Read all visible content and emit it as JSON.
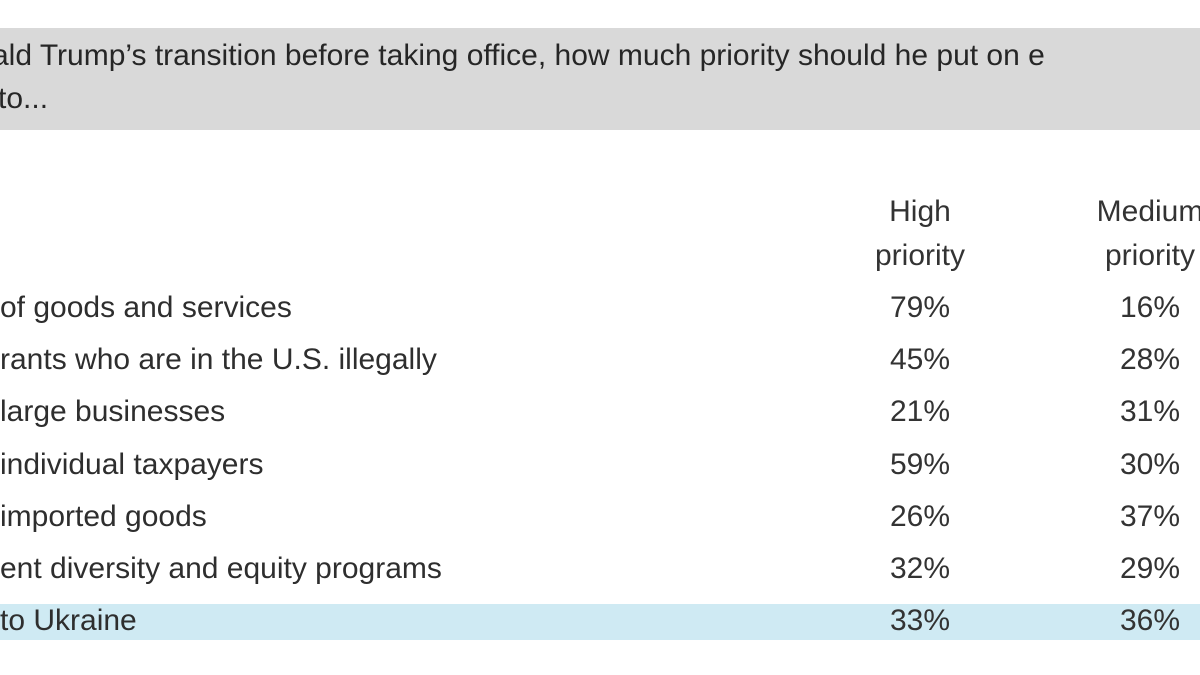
{
  "question": {
    "line1": "ald Trump’s transition before taking office, how much priority should he put on e",
    "line2": "to..."
  },
  "chart_data": {
    "type": "table",
    "columns": [
      {
        "line1": "High",
        "line2": "priority"
      },
      {
        "line1": "Medium",
        "line2": "priority"
      }
    ],
    "rows": [
      {
        "label": "of goods and services",
        "values": [
          "79%",
          "16%"
        ]
      },
      {
        "label": "rants who are in the U.S. illegally",
        "values": [
          "45%",
          "28%"
        ]
      },
      {
        "label": "large businesses",
        "values": [
          "21%",
          "31%"
        ]
      },
      {
        "label": "individual taxpayers",
        "values": [
          "59%",
          "30%"
        ]
      },
      {
        "label": "imported goods",
        "values": [
          "26%",
          "37%"
        ]
      },
      {
        "label": "ent diversity and equity programs",
        "values": [
          "32%",
          "29%"
        ]
      },
      {
        "label": "to Ukraine",
        "values": [
          "33%",
          "36%"
        ],
        "highlighted": true
      }
    ],
    "highlight_color": "#cfeaf3"
  }
}
